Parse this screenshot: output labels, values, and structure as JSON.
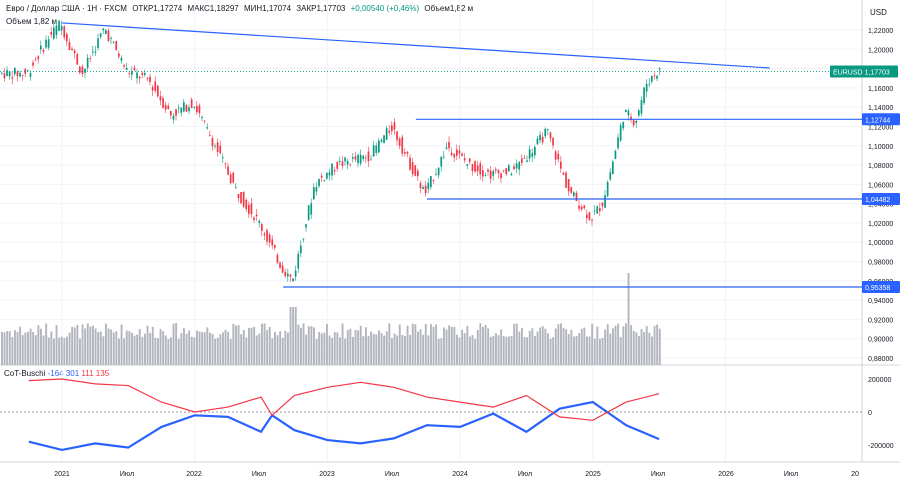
{
  "header": {
    "title": "Евро / Доллар США · 1Н · FXCM",
    "open": "ОТКР1,17274",
    "high": "МАКС1,18297",
    "low": "МИН1,17074",
    "close": "ЗАКР1,17703",
    "change": "+0,00540 (+0,46%)",
    "volume": "Объем1,82 м"
  },
  "volume_label": "Объем 1,82 м",
  "currency": "USD",
  "symbol_tag": "EURUSD",
  "cot": {
    "name": "CoT-Buschi",
    "blue_value": "-164 301",
    "red_value": "111 135"
  },
  "colors": {
    "up": "#089981",
    "down": "#f23645",
    "line": "#2962ff",
    "volume": "#b2b5be",
    "cot_blue": "#2962ff",
    "cot_red": "#f23645"
  },
  "chart_data": [
    {
      "type": "candlestick",
      "title": "",
      "price_axis_ticks": [
        "1,22000",
        "1,20000",
        "1,18000",
        "1,16000",
        "1,14000",
        "1,12000",
        "1,10000",
        "1,08000",
        "1,06000",
        "1,04000",
        "1,02000",
        "1,00000",
        "0,98000",
        "0,96000",
        "0,94000",
        "0,92000",
        "0,90000",
        "0,88000"
      ],
      "ylim": [
        0.875,
        1.235
      ],
      "time_axis_ticks": [
        "2021",
        "Июл",
        "2022",
        "Июл",
        "2023",
        "Июл",
        "2024",
        "Июл",
        "2025",
        "Июл",
        "2026",
        "Июл",
        "20"
      ],
      "price_tags": [
        {
          "label": "EURUSD 1,17703",
          "value": 1.17703,
          "color": "#089981"
        },
        {
          "label": "1,12744",
          "value": 1.12744,
          "color": "#2962ff"
        },
        {
          "label": "1,04482",
          "value": 1.04482,
          "color": "#2962ff"
        },
        {
          "label": "0,95358",
          "value": 0.95358,
          "color": "#2962ff"
        }
      ],
      "horizontal_levels": [
        {
          "value": 1.12744,
          "from": "2023-09",
          "to": "2026-12"
        },
        {
          "value": 1.04482,
          "from": "2023-10",
          "to": "2026-12"
        },
        {
          "value": 0.95358,
          "from": "2022-09",
          "to": "2026-12"
        }
      ],
      "trendline": {
        "start": {
          "date": "2021-01",
          "value": 1.2273
        },
        "end": {
          "date": "2026-05",
          "value": 1.1806
        }
      },
      "price_path": [
        {
          "date": "2020-10",
          "value": 1.175
        },
        {
          "date": "2020-12",
          "value": 1.213
        },
        {
          "date": "2021-01",
          "value": 1.227
        },
        {
          "date": "2021-03",
          "value": 1.175
        },
        {
          "date": "2021-05",
          "value": 1.222
        },
        {
          "date": "2021-07",
          "value": 1.178
        },
        {
          "date": "2021-09",
          "value": 1.168
        },
        {
          "date": "2021-11",
          "value": 1.132
        },
        {
          "date": "2022-01",
          "value": 1.145
        },
        {
          "date": "2022-03",
          "value": 1.1
        },
        {
          "date": "2022-05",
          "value": 1.052
        },
        {
          "date": "2022-07",
          "value": 1.02
        },
        {
          "date": "2022-09",
          "value": 0.975
        },
        {
          "date": "2022-10",
          "value": 0.96
        },
        {
          "date": "2022-12",
          "value": 1.06
        },
        {
          "date": "2023-02",
          "value": 1.08
        },
        {
          "date": "2023-05",
          "value": 1.09
        },
        {
          "date": "2023-07",
          "value": 1.12
        },
        {
          "date": "2023-09",
          "value": 1.072
        },
        {
          "date": "2023-10",
          "value": 1.05
        },
        {
          "date": "2023-12",
          "value": 1.1
        },
        {
          "date": "2024-02",
          "value": 1.08
        },
        {
          "date": "2024-04",
          "value": 1.07
        },
        {
          "date": "2024-06",
          "value": 1.075
        },
        {
          "date": "2024-08",
          "value": 1.1
        },
        {
          "date": "2024-09",
          "value": 1.115
        },
        {
          "date": "2024-11",
          "value": 1.053
        },
        {
          "date": "2025-01",
          "value": 1.025
        },
        {
          "date": "2025-02",
          "value": 1.04
        },
        {
          "date": "2025-03",
          "value": 1.085
        },
        {
          "date": "2025-04",
          "value": 1.135
        },
        {
          "date": "2025-05",
          "value": 1.125
        },
        {
          "date": "2025-06",
          "value": 1.165
        },
        {
          "date": "2025-07",
          "value": 1.177
        }
      ]
    },
    {
      "type": "bar",
      "title": "",
      "series": [
        {
          "name": "",
          "relative_values_described": "volume histogram"
        }
      ]
    },
    {
      "type": "line",
      "title": "",
      "y_axis_ticks": [
        "200000",
        "0",
        "-200000"
      ],
      "ylim": [
        -300000,
        300000
      ],
      "series": [
        {
          "name": "",
          "color": "#2962ff",
          "points": [
            {
              "date": "2020-10",
              "value": -180000
            },
            {
              "date": "2021-01",
              "value": -230000
            },
            {
              "date": "2021-04",
              "value": -190000
            },
            {
              "date": "2021-07",
              "value": -215000
            },
            {
              "date": "2021-10",
              "value": -90000
            },
            {
              "date": "2022-01",
              "value": -20000
            },
            {
              "date": "2022-04",
              "value": -30000
            },
            {
              "date": "2022-07",
              "value": -120000
            },
            {
              "date": "2022-08",
              "value": -20000
            },
            {
              "date": "2022-10",
              "value": -110000
            },
            {
              "date": "2023-01",
              "value": -170000
            },
            {
              "date": "2023-04",
              "value": -190000
            },
            {
              "date": "2023-07",
              "value": -160000
            },
            {
              "date": "2023-10",
              "value": -80000
            },
            {
              "date": "2024-01",
              "value": -90000
            },
            {
              "date": "2024-04",
              "value": -10000
            },
            {
              "date": "2024-07",
              "value": -120000
            },
            {
              "date": "2024-10",
              "value": 20000
            },
            {
              "date": "2025-01",
              "value": 60000
            },
            {
              "date": "2025-04",
              "value": -80000
            },
            {
              "date": "2025-07",
              "value": -164301
            }
          ]
        },
        {
          "name": "",
          "color": "#f23645",
          "points": [
            {
              "date": "2020-10",
              "value": 190000
            },
            {
              "date": "2021-01",
              "value": 200000
            },
            {
              "date": "2021-04",
              "value": 170000
            },
            {
              "date": "2021-07",
              "value": 160000
            },
            {
              "date": "2021-10",
              "value": 60000
            },
            {
              "date": "2022-01",
              "value": 0
            },
            {
              "date": "2022-04",
              "value": 30000
            },
            {
              "date": "2022-07",
              "value": 90000
            },
            {
              "date": "2022-08",
              "value": -20000
            },
            {
              "date": "2022-10",
              "value": 100000
            },
            {
              "date": "2023-01",
              "value": 150000
            },
            {
              "date": "2023-04",
              "value": 180000
            },
            {
              "date": "2023-07",
              "value": 150000
            },
            {
              "date": "2023-10",
              "value": 90000
            },
            {
              "date": "2024-01",
              "value": 60000
            },
            {
              "date": "2024-04",
              "value": 30000
            },
            {
              "date": "2024-07",
              "value": 100000
            },
            {
              "date": "2024-10",
              "value": -30000
            },
            {
              "date": "2025-01",
              "value": -50000
            },
            {
              "date": "2025-04",
              "value": 60000
            },
            {
              "date": "2025-07",
              "value": 111135
            }
          ]
        }
      ]
    }
  ]
}
